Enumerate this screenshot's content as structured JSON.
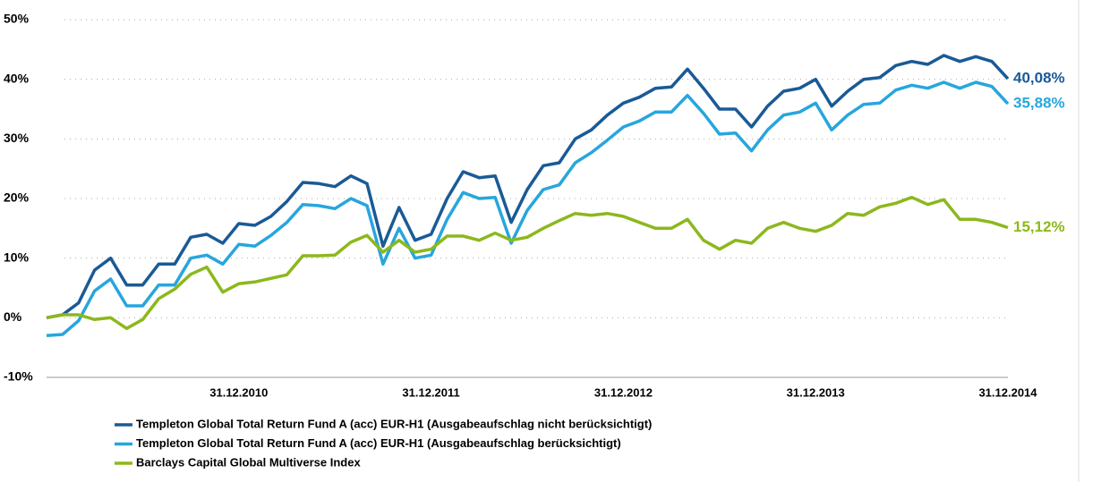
{
  "chart_data": {
    "type": "line",
    "categories": [
      null,
      null,
      null,
      null,
      null,
      null,
      null,
      null,
      null,
      null,
      null,
      null,
      "31.12.2010",
      null,
      null,
      null,
      null,
      null,
      null,
      null,
      null,
      null,
      null,
      null,
      "31.12.2011",
      null,
      null,
      null,
      null,
      null,
      null,
      null,
      null,
      null,
      null,
      null,
      "31.12.2012",
      null,
      null,
      null,
      null,
      null,
      null,
      null,
      null,
      null,
      null,
      null,
      "31.12.2013",
      null,
      null,
      null,
      null,
      null,
      null,
      null,
      null,
      null,
      null,
      null,
      "31.12.2014"
    ],
    "ylim": [
      -10,
      50
    ],
    "yticks": [
      {
        "value": -10,
        "label": "-10%"
      },
      {
        "value": 0,
        "label": "0%"
      },
      {
        "value": 10,
        "label": "10%"
      },
      {
        "value": 20,
        "label": "20%"
      },
      {
        "value": 30,
        "label": "30%"
      },
      {
        "value": 40,
        "label": "40%"
      },
      {
        "value": 50,
        "label": "50%"
      }
    ],
    "grid": true,
    "legend": "bottom",
    "series": [
      {
        "name": "Templeton Global Total Return Fund A (acc) EUR-H1  (Ausgabeaufschlag nicht berücksichtigt)",
        "color": "#1a5a96",
        "values": [
          0,
          0.5,
          2.5,
          8,
          10,
          5.5,
          5.5,
          9,
          9,
          13.5,
          14,
          12.5,
          15.8,
          15.5,
          17,
          19.5,
          22.7,
          22.5,
          22,
          23.8,
          22.5,
          12,
          18.5,
          13,
          14,
          20,
          24.5,
          23.5,
          23.8,
          16,
          21.5,
          25.5,
          26,
          30,
          31.5,
          34,
          36,
          37,
          38.5,
          38.7,
          41.7,
          38.5,
          35,
          35,
          32,
          35.5,
          38,
          38.5,
          40,
          35.5,
          38,
          40,
          40.3,
          42.3,
          43,
          42.5,
          44,
          43,
          43.8,
          43,
          40.08
        ],
        "value_labels": [
          null,
          null,
          null,
          null,
          null,
          null,
          null,
          null,
          null,
          null,
          null,
          null,
          null,
          null,
          null,
          null,
          null,
          null,
          null,
          null,
          null,
          null,
          null,
          null,
          null,
          null,
          null,
          null,
          null,
          null,
          null,
          null,
          null,
          null,
          null,
          null,
          null,
          null,
          null,
          null,
          null,
          null,
          null,
          null,
          null,
          null,
          null,
          null,
          null,
          null,
          null,
          null,
          null,
          null,
          null,
          null,
          null,
          null,
          null,
          null,
          "40,08%"
        ]
      },
      {
        "name": "Templeton Global Total Return Fund A (acc) EUR-H1  (Ausgabeaufschlag berücksichtigt)",
        "color": "#27a6dd",
        "values": [
          -3,
          -2.8,
          -0.5,
          4.5,
          6.5,
          2,
          2,
          5.5,
          5.5,
          10,
          10.5,
          9,
          12.3,
          12,
          13.8,
          16,
          19,
          18.8,
          18.3,
          20,
          18.8,
          9,
          15,
          10,
          10.5,
          16.5,
          21,
          20,
          20.2,
          12.5,
          18,
          21.5,
          22.3,
          26,
          27.7,
          29.8,
          32,
          33,
          34.5,
          34.5,
          37.3,
          34.3,
          30.8,
          31,
          28,
          31.5,
          34,
          34.5,
          36,
          31.5,
          34,
          35.8,
          36,
          38.2,
          39,
          38.5,
          39.5,
          38.5,
          39.5,
          38.8,
          35.88
        ],
        "value_labels": [
          null,
          null,
          null,
          null,
          null,
          null,
          null,
          null,
          null,
          null,
          null,
          null,
          null,
          null,
          null,
          null,
          null,
          null,
          null,
          null,
          null,
          null,
          null,
          null,
          null,
          null,
          null,
          null,
          null,
          null,
          null,
          null,
          null,
          null,
          null,
          null,
          null,
          null,
          null,
          null,
          null,
          null,
          null,
          null,
          null,
          null,
          null,
          null,
          null,
          null,
          null,
          null,
          null,
          null,
          null,
          null,
          null,
          null,
          null,
          null,
          "35,88%"
        ]
      },
      {
        "name": "Barclays Capital Global Multiverse Index",
        "color": "#8cb81c",
        "values": [
          0,
          0.5,
          0.5,
          -0.3,
          0,
          -1.8,
          -0.3,
          3.2,
          4.8,
          7.3,
          8.5,
          4.3,
          5.7,
          6,
          6.6,
          7.2,
          10.4,
          10.4,
          10.5,
          12.7,
          13.8,
          11,
          13,
          11,
          11.5,
          13.7,
          13.7,
          13,
          14.2,
          13,
          13.5,
          15,
          16.3,
          17.5,
          17.2,
          17.5,
          17,
          16,
          15,
          15,
          16.5,
          13,
          11.5,
          13,
          12.5,
          15,
          16,
          15,
          14.5,
          15.5,
          17.5,
          17.2,
          18.6,
          19.2,
          20.2,
          19,
          19.8,
          16.5,
          16.5,
          16,
          15.12
        ],
        "value_labels": [
          null,
          null,
          null,
          null,
          null,
          null,
          null,
          null,
          null,
          null,
          null,
          null,
          null,
          null,
          null,
          null,
          null,
          null,
          null,
          null,
          null,
          null,
          null,
          null,
          null,
          null,
          null,
          null,
          null,
          null,
          null,
          null,
          null,
          null,
          null,
          null,
          null,
          null,
          null,
          null,
          null,
          null,
          null,
          null,
          null,
          null,
          null,
          null,
          null,
          null,
          null,
          null,
          null,
          null,
          null,
          null,
          null,
          null,
          null,
          null,
          "15,12%"
        ]
      }
    ]
  }
}
